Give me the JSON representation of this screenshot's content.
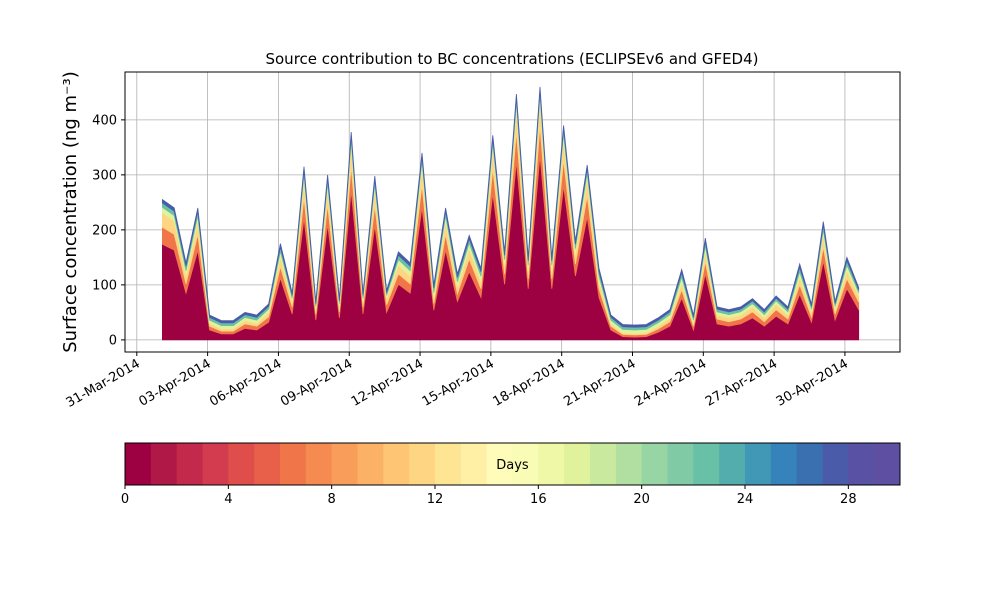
{
  "chart_data": {
    "type": "stacked-area",
    "title": "Source contribution to BC concentrations (ECLIPSEv6 and GFED4)",
    "y_label": "Surface concentration (ng m⁻³)",
    "x": [
      "2014-04-01T02:00",
      "2014-04-01T14:00",
      "2014-04-02T02:00",
      "2014-04-02T14:00",
      "2014-04-03T02:00",
      "2014-04-03T14:00",
      "2014-04-04T02:00",
      "2014-04-04T14:00",
      "2014-04-05T02:00",
      "2014-04-05T14:00",
      "2014-04-06T02:00",
      "2014-04-06T14:00",
      "2014-04-07T02:00",
      "2014-04-07T14:00",
      "2014-04-08T02:00",
      "2014-04-08T14:00",
      "2014-04-09T02:00",
      "2014-04-09T14:00",
      "2014-04-10T02:00",
      "2014-04-10T14:00",
      "2014-04-11T02:00",
      "2014-04-11T14:00",
      "2014-04-12T02:00",
      "2014-04-12T14:00",
      "2014-04-13T02:00",
      "2014-04-13T14:00",
      "2014-04-14T02:00",
      "2014-04-14T14:00",
      "2014-04-15T02:00",
      "2014-04-15T14:00",
      "2014-04-16T02:00",
      "2014-04-16T14:00",
      "2014-04-17T02:00",
      "2014-04-17T14:00",
      "2014-04-18T02:00",
      "2014-04-18T14:00",
      "2014-04-19T02:00",
      "2014-04-19T14:00",
      "2014-04-20T02:00",
      "2014-04-20T14:00",
      "2014-04-21T02:00",
      "2014-04-21T14:00",
      "2014-04-22T02:00",
      "2014-04-22T14:00",
      "2014-04-23T02:00",
      "2014-04-23T14:00",
      "2014-04-24T02:00",
      "2014-04-24T14:00",
      "2014-04-25T02:00",
      "2014-04-25T14:00",
      "2014-04-26T02:00",
      "2014-04-26T14:00",
      "2014-04-27T02:00",
      "2014-04-27T14:00",
      "2014-04-28T02:00",
      "2014-04-28T14:00",
      "2014-04-29T02:00",
      "2014-04-29T14:00",
      "2014-04-30T02:00",
      "2014-04-30T14:00"
    ],
    "series": [
      {
        "color": "#9e0142",
        "values": [
          174,
          163,
          85,
          163,
          18,
          11,
          11,
          21,
          18,
          32,
          112,
          47,
          221,
          36,
          210,
          40,
          271,
          47,
          208,
          50,
          101,
          85,
          241,
          54,
          163,
          70,
          124,
          77,
          266,
          101,
          324,
          93,
          335,
          93,
          280,
          116,
          224,
          77,
          18,
          6,
          5,
          6,
          14,
          25,
          76,
          18,
          120,
          29,
          25,
          29,
          40,
          25,
          43,
          29,
          83,
          32,
          143,
          36,
          93,
          55
        ]
      },
      {
        "color": "#f07649",
        "values": [
          31,
          29,
          17,
          29,
          7,
          5,
          5,
          8,
          7,
          10,
          21,
          13,
          38,
          11,
          36,
          11,
          45,
          13,
          36,
          14,
          19,
          17,
          41,
          12,
          29,
          14,
          23,
          16,
          45,
          19,
          54,
          18,
          55,
          18,
          47,
          22,
          38,
          16,
          7,
          4,
          4,
          4,
          6,
          8,
          15,
          7,
          22,
          9,
          8,
          9,
          11,
          8,
          12,
          9,
          17,
          10,
          26,
          11,
          18,
          14
        ]
      },
      {
        "color": "#fed683",
        "values": [
          26,
          24,
          14,
          24,
          5,
          4,
          4,
          6,
          5,
          8,
          18,
          10,
          32,
          8,
          30,
          9,
          38,
          10,
          30,
          11,
          16,
          14,
          34,
          10,
          24,
          12,
          19,
          13,
          37,
          16,
          45,
          15,
          46,
          15,
          39,
          18,
          32,
          13,
          5,
          3,
          3,
          3,
          5,
          7,
          13,
          5,
          19,
          7,
          7,
          7,
          9,
          7,
          10,
          7,
          14,
          8,
          22,
          8,
          15,
          11
        ]
      },
      {
        "color": "#e0f29b",
        "values": [
          10,
          10,
          10,
          10,
          6,
          6,
          6,
          6,
          6,
          6,
          10,
          6,
          10,
          6,
          10,
          6,
          10,
          6,
          10,
          6,
          10,
          10,
          10,
          10,
          10,
          10,
          10,
          10,
          10,
          10,
          10,
          10,
          10,
          10,
          10,
          10,
          10,
          10,
          6,
          6,
          6,
          6,
          6,
          6,
          10,
          6,
          10,
          6,
          6,
          6,
          6,
          6,
          6,
          6,
          10,
          6,
          10,
          6,
          10,
          6
        ]
      },
      {
        "color": "#68c0a6",
        "values": [
          8,
          8,
          8,
          8,
          5,
          5,
          5,
          5,
          5,
          5,
          8,
          5,
          8,
          5,
          8,
          5,
          8,
          5,
          8,
          5,
          8,
          8,
          8,
          8,
          8,
          8,
          8,
          8,
          8,
          8,
          8,
          8,
          8,
          8,
          8,
          8,
          8,
          8,
          5,
          5,
          5,
          5,
          5,
          5,
          8,
          5,
          8,
          5,
          5,
          5,
          5,
          5,
          5,
          5,
          8,
          5,
          8,
          5,
          8,
          5
        ]
      },
      {
        "color": "#4a5ca9",
        "values": [
          6,
          6,
          6,
          6,
          4,
          4,
          4,
          4,
          4,
          4,
          6,
          4,
          6,
          4,
          6,
          4,
          6,
          4,
          6,
          4,
          6,
          6,
          6,
          6,
          6,
          6,
          6,
          6,
          6,
          6,
          6,
          6,
          6,
          6,
          6,
          6,
          6,
          6,
          4,
          4,
          4,
          4,
          4,
          4,
          6,
          4,
          6,
          4,
          4,
          4,
          4,
          4,
          4,
          4,
          6,
          4,
          6,
          4,
          6,
          4
        ]
      }
    ],
    "xlim": [
      "2014-03-30T12:00",
      "2014-05-02T08:00"
    ],
    "xticks": [
      {
        "value": "2014-03-31",
        "label": "31-Mar-2014"
      },
      {
        "value": "2014-04-03",
        "label": "03-Apr-2014"
      },
      {
        "value": "2014-04-06",
        "label": "06-Apr-2014"
      },
      {
        "value": "2014-04-09",
        "label": "09-Apr-2014"
      },
      {
        "value": "2014-04-12",
        "label": "12-Apr-2014"
      },
      {
        "value": "2014-04-15",
        "label": "15-Apr-2014"
      },
      {
        "value": "2014-04-18",
        "label": "18-Apr-2014"
      },
      {
        "value": "2014-04-21",
        "label": "21-Apr-2014"
      },
      {
        "value": "2014-04-24",
        "label": "24-Apr-2014"
      },
      {
        "value": "2014-04-27",
        "label": "27-Apr-2014"
      },
      {
        "value": "2014-04-30",
        "label": "30-Apr-2014"
      }
    ],
    "ylim": [
      -22,
      487
    ],
    "yticks": [
      0,
      100,
      200,
      300,
      400
    ],
    "grid": true,
    "colorbar": {
      "label": "Days",
      "lim": [
        0,
        30
      ],
      "ticks": [
        0,
        4,
        8,
        12,
        16,
        20,
        24,
        28
      ],
      "colors": [
        "#9e0142",
        "#b01947",
        "#c2294a",
        "#d33c4e",
        "#df4e4b",
        "#e8604a",
        "#f07649",
        "#f68b51",
        "#f99e5a",
        "#fcb266",
        "#fdc574",
        "#fed683",
        "#fee593",
        "#fff0a6",
        "#fffbb8",
        "#f8fcb5",
        "#eef8a6",
        "#e0f29b",
        "#c9e99e",
        "#b1dfa2",
        "#98d5a4",
        "#80cba5",
        "#68c0a6",
        "#53adad",
        "#4198b6",
        "#3683bb",
        "#3a6fb0",
        "#4a5ca9",
        "#5851a4",
        "#5e4fa2"
      ]
    }
  }
}
